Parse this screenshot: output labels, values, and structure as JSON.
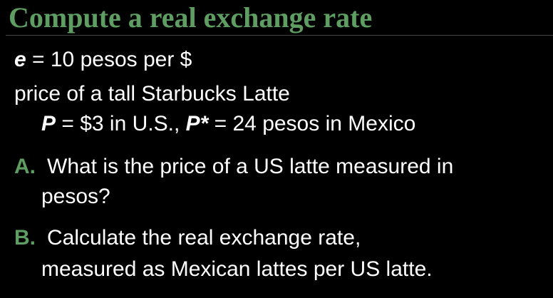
{
  "slide": {
    "title": "Compute a real exchange rate",
    "accent_color": "#5e9e62",
    "background_color": "#000000",
    "text_color": "#ffffff"
  },
  "given": {
    "e_symbol": "e",
    "e_value": " = 10 pesos per $",
    "price_intro": "price of a tall Starbucks Latte",
    "p_symbol": "P",
    "p_value": " = $3 in U.S.,  ",
    "pstar_symbol": "P*",
    "pstar_value": " = 24 pesos in Mexico"
  },
  "questions": [
    {
      "marker": "A.",
      "line1": "What is the price of a US latte measured in",
      "line2": "pesos?"
    },
    {
      "marker": "B.",
      "line1": "Calculate the real exchange rate,",
      "line2": "measured as Mexican lattes per US latte."
    }
  ]
}
